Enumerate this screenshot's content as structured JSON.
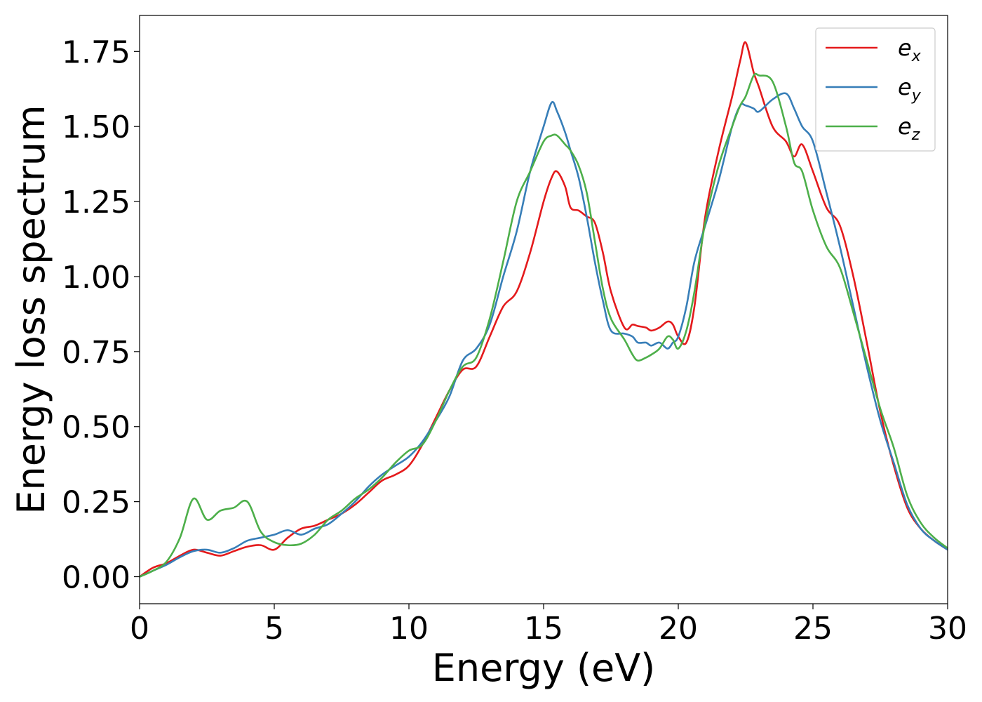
{
  "chart_data": {
    "type": "line",
    "title": "",
    "xlabel": "Energy (eV)",
    "ylabel": "Energy loss spectrum",
    "xlim": [
      0,
      30
    ],
    "ylim": [
      -0.09,
      1.87
    ],
    "xticks": [
      0,
      5,
      10,
      15,
      20,
      25,
      30
    ],
    "xtick_labels": [
      "0",
      "5",
      "10",
      "15",
      "20",
      "25",
      "30"
    ],
    "yticks": [
      0.0,
      0.25,
      0.5,
      0.75,
      1.0,
      1.25,
      1.5,
      1.75
    ],
    "ytick_labels": [
      "0.00",
      "0.25",
      "0.50",
      "0.75",
      "1.00",
      "1.25",
      "1.50",
      "1.75"
    ],
    "grid": false,
    "legend_position": "top-right",
    "series": [
      {
        "name": "e",
        "subscript": "x",
        "color": "#e41a1c",
        "x": [
          0,
          0.5,
          1,
          1.5,
          2,
          2.5,
          3,
          3.5,
          4,
          4.5,
          5,
          5.5,
          6,
          6.5,
          7,
          7.5,
          8,
          8.5,
          9,
          9.5,
          10,
          10.5,
          11,
          11.5,
          12,
          12.5,
          13,
          13.5,
          14,
          14.5,
          15,
          15.3,
          15.5,
          15.8,
          16,
          16.3,
          16.6,
          16.9,
          17.2,
          17.5,
          18,
          18.3,
          18.5,
          18.8,
          19,
          19.3,
          19.6,
          19.8,
          20,
          20.3,
          20.6,
          21,
          21.5,
          22,
          22.3,
          22.5,
          22.8,
          23,
          23.5,
          24,
          24.3,
          24.6,
          25,
          25.5,
          26,
          26.5,
          27,
          27.5,
          28,
          28.5,
          29,
          29.5,
          30
        ],
        "y": [
          0.0,
          0.03,
          0.045,
          0.07,
          0.09,
          0.08,
          0.07,
          0.085,
          0.1,
          0.105,
          0.09,
          0.13,
          0.16,
          0.17,
          0.19,
          0.21,
          0.24,
          0.28,
          0.32,
          0.34,
          0.37,
          0.44,
          0.53,
          0.62,
          0.69,
          0.7,
          0.8,
          0.9,
          0.95,
          1.08,
          1.25,
          1.33,
          1.35,
          1.3,
          1.23,
          1.22,
          1.2,
          1.18,
          1.08,
          0.95,
          0.83,
          0.84,
          0.835,
          0.83,
          0.82,
          0.83,
          0.85,
          0.84,
          0.8,
          0.78,
          0.9,
          1.2,
          1.42,
          1.6,
          1.72,
          1.78,
          1.68,
          1.63,
          1.5,
          1.45,
          1.4,
          1.44,
          1.35,
          1.23,
          1.17,
          1.0,
          0.78,
          0.55,
          0.37,
          0.23,
          0.16,
          0.12,
          0.09
        ]
      },
      {
        "name": "e",
        "subscript": "y",
        "color": "#377eb8",
        "x": [
          0,
          0.5,
          1,
          1.5,
          2,
          2.5,
          3,
          3.5,
          4,
          4.5,
          5,
          5.5,
          6,
          6.5,
          7,
          7.5,
          8,
          8.5,
          9,
          9.5,
          10,
          10.5,
          11,
          11.5,
          12,
          12.5,
          13,
          13.5,
          14,
          14.5,
          15,
          15.3,
          15.5,
          15.8,
          16,
          16.3,
          16.6,
          16.9,
          17.2,
          17.5,
          18,
          18.3,
          18.5,
          18.8,
          19,
          19.3,
          19.6,
          19.8,
          20,
          20.3,
          20.6,
          21,
          21.5,
          22,
          22.3,
          22.5,
          22.8,
          23,
          23.5,
          24,
          24.3,
          24.6,
          25,
          25.5,
          26,
          26.5,
          27,
          27.5,
          28,
          28.5,
          29,
          29.5,
          30
        ],
        "y": [
          0.0,
          0.02,
          0.04,
          0.065,
          0.085,
          0.09,
          0.08,
          0.095,
          0.12,
          0.13,
          0.14,
          0.155,
          0.14,
          0.16,
          0.175,
          0.21,
          0.25,
          0.3,
          0.34,
          0.37,
          0.4,
          0.45,
          0.52,
          0.6,
          0.72,
          0.76,
          0.84,
          1.0,
          1.15,
          1.35,
          1.5,
          1.58,
          1.55,
          1.48,
          1.42,
          1.33,
          1.2,
          1.05,
          0.92,
          0.82,
          0.81,
          0.8,
          0.78,
          0.78,
          0.77,
          0.78,
          0.76,
          0.78,
          0.8,
          0.9,
          1.05,
          1.17,
          1.32,
          1.5,
          1.57,
          1.57,
          1.56,
          1.55,
          1.59,
          1.61,
          1.56,
          1.5,
          1.45,
          1.28,
          1.1,
          0.9,
          0.7,
          0.52,
          0.38,
          0.24,
          0.16,
          0.12,
          0.09
        ]
      },
      {
        "name": "e",
        "subscript": "z",
        "color": "#4daf4a",
        "x": [
          0,
          0.5,
          1,
          1.5,
          2,
          2.5,
          3,
          3.5,
          4,
          4.5,
          5,
          5.5,
          6,
          6.5,
          7,
          7.5,
          8,
          8.5,
          9,
          9.5,
          10,
          10.5,
          11,
          11.5,
          12,
          12.5,
          13,
          13.5,
          14,
          14.5,
          15,
          15.3,
          15.5,
          15.8,
          16,
          16.3,
          16.6,
          16.9,
          17.2,
          17.5,
          18,
          18.3,
          18.5,
          18.8,
          19,
          19.3,
          19.6,
          19.8,
          20,
          20.3,
          20.6,
          21,
          21.5,
          22,
          22.3,
          22.5,
          22.8,
          23,
          23.5,
          24,
          24.3,
          24.6,
          25,
          25.5,
          26,
          26.5,
          27,
          27.5,
          28,
          28.5,
          29,
          29.5,
          30
        ],
        "y": [
          0.0,
          0.02,
          0.05,
          0.13,
          0.26,
          0.19,
          0.22,
          0.23,
          0.25,
          0.15,
          0.115,
          0.105,
          0.11,
          0.14,
          0.19,
          0.22,
          0.26,
          0.29,
          0.33,
          0.38,
          0.42,
          0.44,
          0.52,
          0.62,
          0.7,
          0.73,
          0.86,
          1.05,
          1.25,
          1.35,
          1.45,
          1.47,
          1.47,
          1.44,
          1.42,
          1.37,
          1.28,
          1.12,
          0.96,
          0.86,
          0.79,
          0.74,
          0.72,
          0.73,
          0.74,
          0.76,
          0.8,
          0.79,
          0.76,
          0.82,
          0.95,
          1.18,
          1.37,
          1.5,
          1.57,
          1.6,
          1.67,
          1.67,
          1.65,
          1.5,
          1.38,
          1.35,
          1.22,
          1.1,
          1.03,
          0.88,
          0.72,
          0.56,
          0.43,
          0.27,
          0.18,
          0.13,
          0.095
        ]
      }
    ]
  }
}
